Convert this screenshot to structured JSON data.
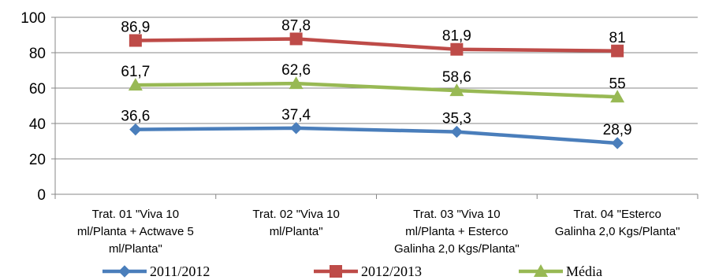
{
  "chart_data": {
    "type": "line",
    "categories": [
      [
        "Trat. 01 \"Viva 10",
        "ml/Planta + Actwave 5",
        "ml/Planta\""
      ],
      [
        "Trat. 02 \"Viva 10",
        "ml/Planta\""
      ],
      [
        "Trat. 03 \"Viva 10",
        "ml/Planta + Esterco",
        "Galinha 2,0 Kgs/Planta\""
      ],
      [
        "Trat. 04 \"Esterco",
        "Galinha 2,0 Kgs/Planta\""
      ]
    ],
    "ylim": [
      0,
      100
    ],
    "yticks": [
      0,
      20,
      40,
      60,
      80,
      100
    ],
    "grid": true,
    "legend_position": "bottom",
    "series": [
      {
        "name": "2011/2012",
        "color": "#4a7ebb",
        "marker": "diamond",
        "values": [
          36.6,
          37.4,
          35.3,
          28.9
        ],
        "labels": [
          "36,6",
          "37,4",
          "35,3",
          "28,9"
        ]
      },
      {
        "name": "2012/2013",
        "color": "#be4b48",
        "marker": "square",
        "values": [
          86.9,
          87.8,
          81.9,
          81
        ],
        "labels": [
          "86,9",
          "87,8",
          "81,9",
          "81"
        ]
      },
      {
        "name": "Média",
        "color": "#98b954",
        "marker": "triangle",
        "values": [
          61.7,
          62.6,
          58.6,
          55
        ],
        "labels": [
          "61,7",
          "62,6",
          "58,6",
          "55"
        ]
      }
    ]
  }
}
